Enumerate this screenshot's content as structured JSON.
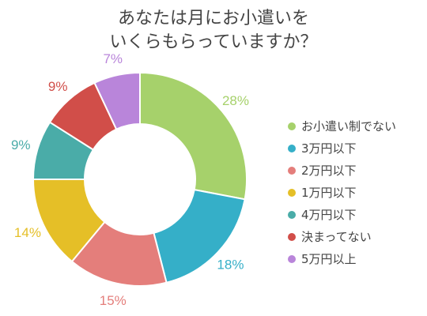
{
  "chart_data": {
    "type": "pie",
    "title_lines": [
      "あなたは月にお小遣いを",
      "いくらもらっていますか？"
    ],
    "legend_position": "right",
    "slices": [
      {
        "label": "お小遣い制でない",
        "value": 28,
        "value_label": "28%",
        "color": "#a6d16b"
      },
      {
        "label": "3万円以下",
        "value": 18,
        "value_label": "18%",
        "color": "#35afc8"
      },
      {
        "label": "2万円以下",
        "value": 15,
        "value_label": "15%",
        "color": "#e47e7b"
      },
      {
        "label": "1万円以下",
        "value": 14,
        "value_label": "14%",
        "color": "#e5bf27"
      },
      {
        "label": "4万円以下",
        "value": 9,
        "value_label": "9%",
        "color": "#4aaca8"
      },
      {
        "label": "決まってない",
        "value": 9,
        "value_label": "9%",
        "color": "#d14e49"
      },
      {
        "label": "5万円以上",
        "value": 7,
        "value_label": "7%",
        "color": "#b985da"
      }
    ]
  }
}
